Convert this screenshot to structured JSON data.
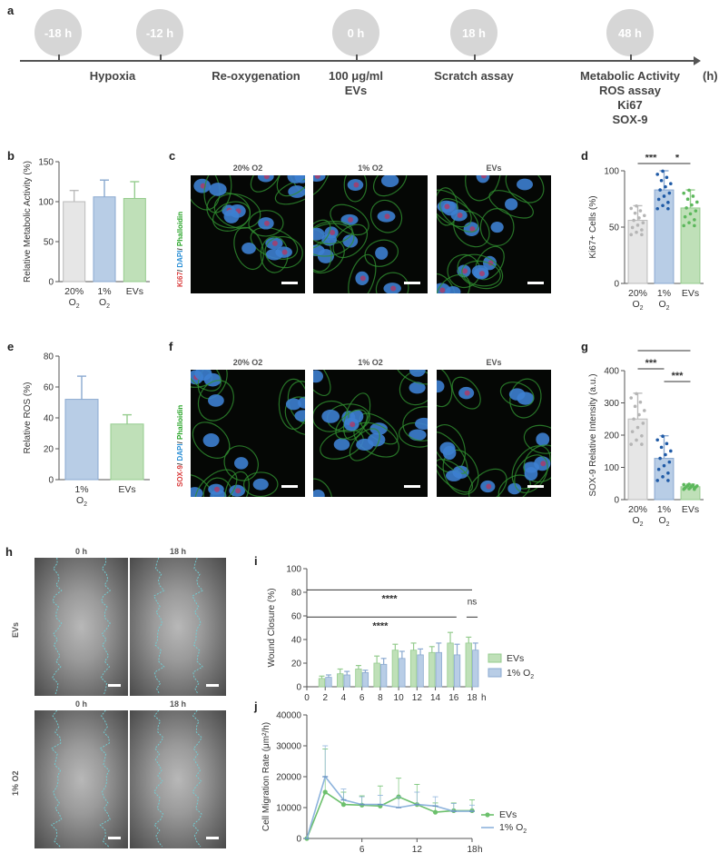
{
  "panels": {
    "a": "a",
    "b": "b",
    "c": "c",
    "d": "d",
    "e": "e",
    "f": "f",
    "g": "g",
    "h": "h",
    "i": "i",
    "j": "j"
  },
  "timeline": {
    "unit": "(h)",
    "milestones": [
      {
        "time": "-18 h",
        "label": "Hypoxia"
      },
      {
        "time": "-12 h",
        "label": "Re-oxygenation"
      },
      {
        "time": "0 h",
        "label": "100 μg/ml\nEVs"
      },
      {
        "time": "18 h",
        "label": "Scratch assay"
      },
      {
        "time": "48 h",
        "label": "Metabolic Activity\nROS assay\nKi67\nSOX-9"
      }
    ]
  },
  "colors": {
    "gray": "#e6e6e6",
    "blue": "#b8cde6",
    "green": "#bfe0b8",
    "blue_dark": "#1f5aa6",
    "green_dark": "#5cb85c"
  },
  "micro_c": {
    "headers": [
      "20% O2",
      "1% O2",
      "EVs"
    ],
    "stain": [
      "Ki67",
      "/ ",
      "DAPI",
      "/ ",
      "Phalloidin"
    ]
  },
  "micro_f": {
    "headers": [
      "20% O2",
      "1% O2",
      "EVs"
    ],
    "stain": [
      "SOX-9",
      "/ ",
      "DAPI",
      "/ ",
      "Phalloidin"
    ]
  },
  "scratch_h": {
    "cols": [
      "0 h",
      "18 h"
    ],
    "rows": [
      "EVs",
      "1% O2"
    ]
  },
  "chart_data": [
    {
      "id": "b",
      "type": "bar",
      "categories": [
        "20%\nO2",
        "1%\nO2",
        "EVs"
      ],
      "values": [
        100,
        106,
        104
      ],
      "errors": [
        14,
        21,
        21
      ],
      "ylabel": "Relative Metabolic Activity (%)",
      "ylim": [
        0,
        150
      ],
      "yticks": [
        0,
        50,
        100,
        150
      ]
    },
    {
      "id": "d",
      "type": "bar",
      "categories": [
        "20%\nO2",
        "1%\nO2",
        "EVs"
      ],
      "values": [
        56,
        83,
        67
      ],
      "errors": [
        13,
        17,
        16
      ],
      "ylabel": "Ki67+ Cells (%)",
      "ylim": [
        0,
        100
      ],
      "yticks": [
        0,
        50,
        100
      ],
      "significance": [
        {
          "from": 0,
          "to": 1,
          "label": "***"
        },
        {
          "from": 1,
          "to": 2,
          "label": "*"
        }
      ]
    },
    {
      "id": "e",
      "type": "bar",
      "categories": [
        "1%\nO2",
        "EVs"
      ],
      "values": [
        52,
        36
      ],
      "errors": [
        15,
        6
      ],
      "ylabel": "Relative ROS  (%)",
      "ylim": [
        0,
        80
      ],
      "yticks": [
        0,
        20,
        40,
        60,
        80
      ]
    },
    {
      "id": "g",
      "type": "bar",
      "categories": [
        "20%\nO2",
        "1%\nO2",
        "EVs"
      ],
      "values": [
        250,
        128,
        40
      ],
      "errors": [
        80,
        70,
        8
      ],
      "ylabel": "SOX-9 Relative Intensity (a.u.)",
      "ylim": [
        0,
        400
      ],
      "yticks": [
        0,
        100,
        200,
        300,
        400
      ],
      "significance": [
        {
          "from": 0,
          "to": 2,
          "label": "****"
        },
        {
          "from": 0,
          "to": 1,
          "label": "***"
        },
        {
          "from": 1,
          "to": 2,
          "label": "***"
        }
      ]
    },
    {
      "id": "i",
      "type": "bar",
      "x": [
        2,
        4,
        6,
        8,
        10,
        12,
        14,
        16,
        18
      ],
      "series": [
        {
          "name": "EVs",
          "values": [
            7,
            11,
            15,
            20,
            31,
            31,
            29,
            37,
            37
          ],
          "errors": [
            2,
            4,
            3,
            6,
            5,
            6,
            5,
            9,
            5
          ]
        },
        {
          "name": "1% O2",
          "values": [
            8,
            10,
            12,
            19,
            24,
            27,
            29,
            27,
            31
          ],
          "errors": [
            2,
            3,
            2,
            5,
            6,
            5,
            8,
            9,
            6
          ]
        }
      ],
      "ylabel": "Wound Closure (%)",
      "xunit": "h",
      "ylim": [
        0,
        100
      ],
      "yticks": [
        0,
        20,
        40,
        60,
        80,
        100
      ],
      "xticks": [
        0,
        2,
        4,
        6,
        8,
        10,
        12,
        14,
        16,
        18
      ],
      "significance": [
        {
          "label": "****"
        },
        {
          "label": "****"
        },
        {
          "label": "ns"
        }
      ]
    },
    {
      "id": "j",
      "type": "line",
      "x": [
        0,
        2,
        4,
        6,
        8,
        10,
        12,
        14,
        16,
        18
      ],
      "series": [
        {
          "name": "EVs",
          "values": [
            0,
            15000,
            11000,
            10800,
            10500,
            13500,
            11000,
            8500,
            9000,
            9000
          ],
          "errors": [
            0,
            14000,
            4000,
            3000,
            6500,
            6000,
            6500,
            3000,
            2500,
            3500
          ]
        },
        {
          "name": "1% O2",
          "values": [
            0,
            20000,
            12500,
            11000,
            11000,
            10000,
            11000,
            10500,
            8800,
            8800
          ],
          "errors": [
            0,
            10000,
            3500,
            2500,
            3000,
            3500,
            4000,
            3000,
            2500,
            2000
          ]
        }
      ],
      "ylabel": "Cell Migration Rate (μm²/h)",
      "xunit": "h",
      "ylim": [
        0,
        40000
      ],
      "yticks": [
        0,
        10000,
        20000,
        30000,
        40000
      ],
      "xticks": [
        6,
        12,
        18
      ]
    }
  ]
}
